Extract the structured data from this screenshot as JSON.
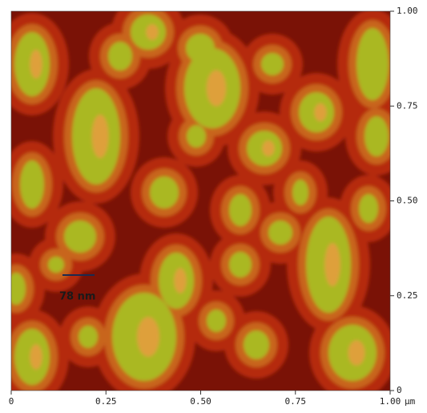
{
  "chart_data": {
    "type": "image",
    "x_unit": "µm",
    "xlim": [
      0,
      1
    ],
    "ylim": [
      0,
      1
    ],
    "xticks": [
      0,
      0.25,
      {
        "value": 0.5,
        "label": "0.50"
      },
      0.75,
      {
        "value": 1,
        "label": "1.00"
      }
    ],
    "yticks": [
      0,
      0.25,
      {
        "value": 0.5,
        "label": "0.50"
      },
      0.75,
      {
        "value": 1,
        "label": "1.00"
      }
    ],
    "annotation": "78 nm"
  }
}
